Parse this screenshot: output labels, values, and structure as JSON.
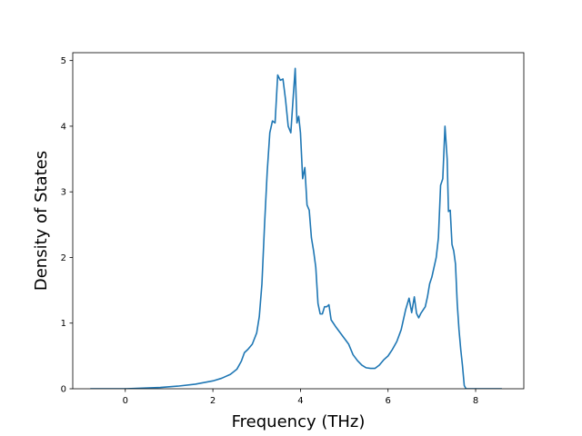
{
  "chart_data": {
    "type": "line",
    "title": "",
    "xlabel": "Frequency (THz)",
    "ylabel": "Density of States",
    "xlim": [
      -1.2,
      9.1
    ],
    "ylim": [
      0,
      5.12
    ],
    "xticks": [
      0,
      2,
      4,
      6,
      8
    ],
    "yticks": [
      0,
      1,
      2,
      3,
      4,
      5
    ],
    "grid": false,
    "legend": "none",
    "colors": {
      "line": "#1f77b4",
      "axes": "#000000",
      "background": "#ffffff"
    },
    "series": [
      {
        "x": [
          -0.8,
          -0.4,
          0.0,
          0.4,
          0.8,
          1.2,
          1.6,
          2.0,
          2.2,
          2.4,
          2.55,
          2.65,
          2.72,
          2.8,
          2.9,
          3.0,
          3.06,
          3.12,
          3.18,
          3.24,
          3.3,
          3.36,
          3.42,
          3.48,
          3.54,
          3.6,
          3.66,
          3.72,
          3.78,
          3.84,
          3.88,
          3.92,
          3.96,
          4.0,
          4.05,
          4.1,
          4.15,
          4.2,
          4.25,
          4.3,
          4.35,
          4.4,
          4.45,
          4.5,
          4.55,
          4.6,
          4.65,
          4.7,
          4.8,
          4.9,
          5.0,
          5.1,
          5.2,
          5.3,
          5.4,
          5.5,
          5.6,
          5.7,
          5.8,
          5.9,
          6.0,
          6.1,
          6.2,
          6.3,
          6.4,
          6.48,
          6.54,
          6.6,
          6.65,
          6.7,
          6.75,
          6.8,
          6.85,
          6.9,
          6.95,
          7.0,
          7.05,
          7.1,
          7.15,
          7.2,
          7.25,
          7.3,
          7.35,
          7.38,
          7.42,
          7.46,
          7.5,
          7.54,
          7.58,
          7.62,
          7.66,
          7.7,
          7.74,
          7.78,
          7.8,
          7.85,
          8.0,
          8.3,
          8.6
        ],
        "y": [
          0.0,
          0.0,
          0.0,
          0.01,
          0.02,
          0.04,
          0.07,
          0.12,
          0.16,
          0.22,
          0.3,
          0.42,
          0.55,
          0.6,
          0.68,
          0.85,
          1.1,
          1.6,
          2.5,
          3.3,
          3.9,
          4.08,
          4.05,
          4.78,
          4.7,
          4.72,
          4.4,
          4.0,
          3.9,
          4.5,
          4.88,
          4.05,
          4.15,
          3.9,
          3.2,
          3.37,
          2.8,
          2.72,
          2.3,
          2.1,
          1.85,
          1.3,
          1.14,
          1.14,
          1.25,
          1.25,
          1.28,
          1.05,
          0.95,
          0.86,
          0.77,
          0.68,
          0.52,
          0.43,
          0.36,
          0.32,
          0.31,
          0.31,
          0.36,
          0.44,
          0.5,
          0.6,
          0.72,
          0.9,
          1.2,
          1.38,
          1.16,
          1.4,
          1.15,
          1.08,
          1.15,
          1.2,
          1.25,
          1.4,
          1.6,
          1.7,
          1.85,
          2.0,
          2.3,
          3.1,
          3.2,
          4.0,
          3.5,
          2.7,
          2.72,
          2.2,
          2.1,
          1.9,
          1.3,
          0.9,
          0.6,
          0.35,
          0.05,
          0.0,
          0.0,
          0.0,
          0.0,
          0.0,
          0.0
        ]
      }
    ]
  }
}
